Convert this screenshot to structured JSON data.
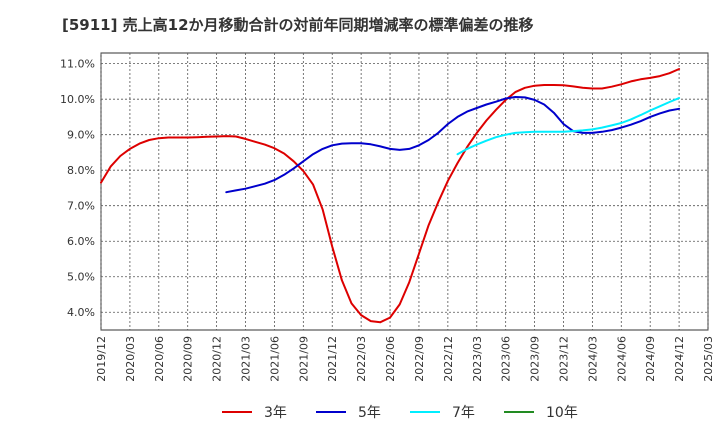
{
  "title": "[5911]  売上高12か月移動合計の対前年同期増減率の標準偏差の推移",
  "chart_data": {
    "type": "line",
    "title": "[5911]  売上高12か月移動合計の対前年同期増減率の標準偏差の推移",
    "x_start": "2019/12",
    "x_end": "2025/03",
    "ylim": [
      3.5,
      11.3
    ],
    "yticks": [
      "4.0%",
      "5.0%",
      "6.0%",
      "7.0%",
      "8.0%",
      "9.0%",
      "10.0%",
      "11.0%"
    ],
    "ytick_values": [
      4.0,
      5.0,
      6.0,
      7.0,
      8.0,
      9.0,
      10.0,
      11.0
    ],
    "xticks": [
      "2019/12",
      "2020/03",
      "2020/06",
      "2020/09",
      "2020/12",
      "2021/03",
      "2021/06",
      "2021/09",
      "2021/12",
      "2022/03",
      "2022/06",
      "2022/09",
      "2022/12",
      "2023/03",
      "2023/06",
      "2023/09",
      "2023/12",
      "2024/03",
      "2024/06",
      "2024/09",
      "2024/12",
      "2025/03"
    ],
    "grid": true,
    "legend_position": "bottom",
    "series": [
      {
        "name": "3年",
        "color": "#dd0000",
        "x": [
          "2019/12",
          "2020/01",
          "2020/02",
          "2020/03",
          "2020/04",
          "2020/05",
          "2020/06",
          "2020/07",
          "2020/08",
          "2020/09",
          "2020/10",
          "2020/11",
          "2020/12",
          "2021/01",
          "2021/02",
          "2021/03",
          "2021/04",
          "2021/05",
          "2021/06",
          "2021/07",
          "2021/08",
          "2021/09",
          "2021/10",
          "2021/11",
          "2021/12",
          "2022/01",
          "2022/02",
          "2022/03",
          "2022/04",
          "2022/05",
          "2022/06",
          "2022/07",
          "2022/08",
          "2022/09",
          "2022/10",
          "2022/11",
          "2022/12",
          "2023/01",
          "2023/02",
          "2023/03",
          "2023/04",
          "2023/05",
          "2023/06",
          "2023/07",
          "2023/08",
          "2023/09",
          "2023/10",
          "2023/11",
          "2023/12",
          "2024/01",
          "2024/02",
          "2024/03",
          "2024/04",
          "2024/05",
          "2024/06",
          "2024/07",
          "2024/08",
          "2024/09",
          "2024/10",
          "2024/11",
          "2024/12"
        ],
        "values": [
          7.65,
          8.1,
          8.4,
          8.6,
          8.75,
          8.85,
          8.9,
          8.92,
          8.92,
          8.92,
          8.93,
          8.94,
          8.95,
          8.96,
          8.95,
          8.88,
          8.8,
          8.72,
          8.62,
          8.47,
          8.25,
          7.98,
          7.6,
          6.9,
          5.85,
          4.9,
          4.25,
          3.92,
          3.75,
          3.72,
          3.85,
          4.22,
          4.85,
          5.65,
          6.45,
          7.1,
          7.7,
          8.2,
          8.65,
          9.05,
          9.4,
          9.7,
          9.98,
          10.2,
          10.32,
          10.38,
          10.4,
          10.4,
          10.39,
          10.36,
          10.32,
          10.3,
          10.3,
          10.35,
          10.42,
          10.5,
          10.56,
          10.6,
          10.65,
          10.73,
          10.85
        ]
      },
      {
        "name": "5年",
        "color": "#0000cc",
        "x": [
          "2021/01",
          "2021/02",
          "2021/03",
          "2021/04",
          "2021/05",
          "2021/06",
          "2021/07",
          "2021/08",
          "2021/09",
          "2021/10",
          "2021/11",
          "2021/12",
          "2022/01",
          "2022/02",
          "2022/03",
          "2022/04",
          "2022/05",
          "2022/06",
          "2022/07",
          "2022/08",
          "2022/09",
          "2022/10",
          "2022/11",
          "2022/12",
          "2023/01",
          "2023/02",
          "2023/03",
          "2023/04",
          "2023/05",
          "2023/06",
          "2023/07",
          "2023/08",
          "2023/09",
          "2023/10",
          "2023/11",
          "2023/12",
          "2024/01",
          "2024/02",
          "2024/03",
          "2024/04",
          "2024/05",
          "2024/06",
          "2024/07",
          "2024/08",
          "2024/09",
          "2024/10",
          "2024/11",
          "2024/12"
        ],
        "values": [
          7.38,
          7.43,
          7.48,
          7.55,
          7.62,
          7.72,
          7.87,
          8.05,
          8.25,
          8.45,
          8.6,
          8.7,
          8.75,
          8.76,
          8.76,
          8.73,
          8.67,
          8.6,
          8.57,
          8.6,
          8.7,
          8.85,
          9.05,
          9.3,
          9.5,
          9.65,
          9.75,
          9.85,
          9.93,
          10.02,
          10.06,
          10.05,
          9.98,
          9.85,
          9.62,
          9.3,
          9.1,
          9.05,
          9.05,
          9.08,
          9.13,
          9.2,
          9.28,
          9.38,
          9.5,
          9.6,
          9.68,
          9.73
        ]
      },
      {
        "name": "7年",
        "color": "#00eeff",
        "x": [
          "2023/01",
          "2023/02",
          "2023/03",
          "2023/04",
          "2023/05",
          "2023/06",
          "2023/07",
          "2023/08",
          "2023/09",
          "2023/10",
          "2023/11",
          "2023/12",
          "2024/01",
          "2024/02",
          "2024/03",
          "2024/04",
          "2024/05",
          "2024/06",
          "2024/07",
          "2024/08",
          "2024/09",
          "2024/10",
          "2024/11",
          "2024/12"
        ],
        "values": [
          8.45,
          8.6,
          8.72,
          8.83,
          8.93,
          9.0,
          9.05,
          9.07,
          9.08,
          9.08,
          9.08,
          9.08,
          9.1,
          9.12,
          9.15,
          9.2,
          9.26,
          9.33,
          9.43,
          9.55,
          9.68,
          9.8,
          9.92,
          10.03
        ]
      },
      {
        "name": "10年",
        "color": "#228b22",
        "x": [],
        "values": []
      }
    ]
  }
}
